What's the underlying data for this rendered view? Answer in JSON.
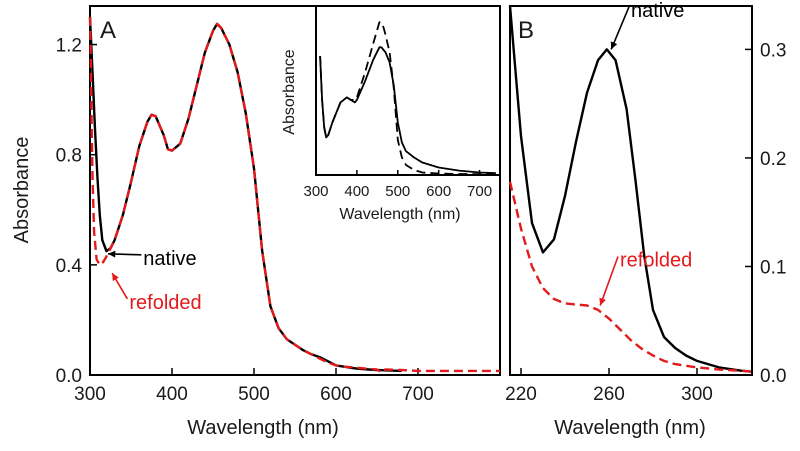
{
  "chart_data": [
    {
      "id": "A",
      "type": "line",
      "panel_label": "A",
      "xlabel": "Wavelength (nm)",
      "ylabel": "Absorbance",
      "xlim": [
        300,
        800
      ],
      "ylim": [
        0,
        1.34
      ],
      "x_ticks": [
        300,
        400,
        500,
        600,
        700
      ],
      "x_tick_labels": [
        "300",
        "400",
        "500",
        "600",
        "700"
      ],
      "y_ticks": [
        0.0,
        0.4,
        0.8,
        1.2
      ],
      "y_tick_labels": [
        "0.0",
        "0.4",
        "0.8",
        "1.2"
      ],
      "series": [
        {
          "name": "native",
          "color": "#000000",
          "dash": "solid",
          "points": [
            [
              300,
              1.3
            ],
            [
              303,
              1.1
            ],
            [
              306,
              0.9
            ],
            [
              309,
              0.72
            ],
            [
              312,
              0.58
            ],
            [
              315,
              0.49
            ],
            [
              320,
              0.45
            ],
            [
              325,
              0.46
            ],
            [
              330,
              0.49
            ],
            [
              340,
              0.58
            ],
            [
              350,
              0.7
            ],
            [
              360,
              0.83
            ],
            [
              370,
              0.92
            ],
            [
              375,
              0.945
            ],
            [
              380,
              0.94
            ],
            [
              390,
              0.87
            ],
            [
              395,
              0.82
            ],
            [
              400,
              0.815
            ],
            [
              410,
              0.84
            ],
            [
              420,
              0.93
            ],
            [
              430,
              1.05
            ],
            [
              440,
              1.17
            ],
            [
              450,
              1.25
            ],
            [
              455,
              1.275
            ],
            [
              460,
              1.26
            ],
            [
              470,
              1.2
            ],
            [
              480,
              1.1
            ],
            [
              490,
              0.95
            ],
            [
              500,
              0.75
            ],
            [
              510,
              0.45
            ],
            [
              520,
              0.25
            ],
            [
              530,
              0.17
            ],
            [
              540,
              0.13
            ],
            [
              550,
              0.11
            ],
            [
              560,
              0.09
            ],
            [
              570,
              0.075
            ],
            [
              580,
              0.065
            ],
            [
              590,
              0.05
            ],
            [
              600,
              0.035
            ],
            [
              610,
              0.03
            ],
            [
              620,
              0.025
            ],
            [
              630,
              0.022
            ],
            [
              640,
              0.02
            ],
            [
              650,
              0.018
            ],
            [
              660,
              0.017
            ],
            [
              680,
              0.015
            ]
          ]
        },
        {
          "name": "refolded",
          "color": "#e31a1c",
          "dash": "dashed",
          "points": [
            [
              300,
              1.3
            ],
            [
              301,
              1.15
            ],
            [
              302,
              0.92
            ],
            [
              303,
              0.72
            ],
            [
              305,
              0.52
            ],
            [
              308,
              0.42
            ],
            [
              312,
              0.4
            ],
            [
              316,
              0.41
            ],
            [
              320,
              0.43
            ],
            [
              325,
              0.46
            ],
            [
              330,
              0.49
            ],
            [
              340,
              0.58
            ],
            [
              350,
              0.7
            ],
            [
              360,
              0.83
            ],
            [
              370,
              0.92
            ],
            [
              375,
              0.945
            ],
            [
              380,
              0.94
            ],
            [
              390,
              0.87
            ],
            [
              395,
              0.82
            ],
            [
              400,
              0.815
            ],
            [
              410,
              0.84
            ],
            [
              420,
              0.93
            ],
            [
              430,
              1.05
            ],
            [
              440,
              1.17
            ],
            [
              450,
              1.25
            ],
            [
              455,
              1.275
            ],
            [
              460,
              1.26
            ],
            [
              470,
              1.2
            ],
            [
              480,
              1.1
            ],
            [
              490,
              0.95
            ],
            [
              500,
              0.75
            ],
            [
              510,
              0.45
            ],
            [
              520,
              0.25
            ],
            [
              530,
              0.17
            ],
            [
              540,
              0.13
            ],
            [
              550,
              0.11
            ],
            [
              560,
              0.09
            ],
            [
              570,
              0.075
            ],
            [
              580,
              0.06
            ],
            [
              590,
              0.045
            ],
            [
              600,
              0.035
            ],
            [
              610,
              0.03
            ],
            [
              620,
              0.028
            ],
            [
              630,
              0.025
            ],
            [
              640,
              0.022
            ],
            [
              650,
              0.02
            ],
            [
              655,
              0.01
            ],
            [
              660,
              0.02
            ],
            [
              680,
              0.018
            ],
            [
              700,
              0.015
            ],
            [
              720,
              0.015
            ],
            [
              740,
              0.015
            ],
            [
              760,
              0.015
            ],
            [
              780,
              0.015
            ],
            [
              800,
              0.015
            ]
          ]
        }
      ],
      "annotations": [
        {
          "text": "native",
          "color": "#000000",
          "arrow_to": [
            322,
            0.44
          ],
          "label_at": [
            365,
            0.4
          ]
        },
        {
          "text": "refolded",
          "color": "#e31a1c",
          "arrow_to": [
            327,
            0.37
          ],
          "label_at": [
            348,
            0.24
          ]
        }
      ]
    },
    {
      "id": "A-inset",
      "type": "line",
      "ylabel": "Absorbance",
      "xlabel": "Wavelength (nm)",
      "xlim": [
        300,
        750
      ],
      "ylim": [
        0,
        1.35
      ],
      "x_ticks": [
        300,
        400,
        500,
        600,
        700
      ],
      "x_tick_labels": [
        "300",
        "400",
        "500",
        "600",
        "700"
      ],
      "series": [
        {
          "name": "native",
          "color": "#000000",
          "dash": "solid",
          "points": [
            [
              310,
              0.95
            ],
            [
              315,
              0.6
            ],
            [
              320,
              0.38
            ],
            [
              325,
              0.3
            ],
            [
              330,
              0.32
            ],
            [
              340,
              0.42
            ],
            [
              360,
              0.58
            ],
            [
              375,
              0.62
            ],
            [
              385,
              0.6
            ],
            [
              395,
              0.58
            ],
            [
              400,
              0.6
            ],
            [
              420,
              0.75
            ],
            [
              440,
              0.92
            ],
            [
              455,
              1.02
            ],
            [
              460,
              1.02
            ],
            [
              470,
              0.98
            ],
            [
              480,
              0.9
            ],
            [
              490,
              0.72
            ],
            [
              500,
              0.42
            ],
            [
              510,
              0.26
            ],
            [
              520,
              0.19
            ],
            [
              540,
              0.14
            ],
            [
              560,
              0.1
            ],
            [
              600,
              0.06
            ],
            [
              650,
              0.035
            ],
            [
              700,
              0.02
            ],
            [
              740,
              0.015
            ]
          ]
        },
        {
          "name": "refolded",
          "color": "#000000",
          "dash": "dashed",
          "points": [
            [
              310,
              0.95
            ],
            [
              315,
              0.6
            ],
            [
              320,
              0.38
            ],
            [
              325,
              0.3
            ],
            [
              330,
              0.32
            ],
            [
              340,
              0.42
            ],
            [
              360,
              0.58
            ],
            [
              375,
              0.62
            ],
            [
              385,
              0.6
            ],
            [
              395,
              0.6
            ],
            [
              400,
              0.62
            ],
            [
              420,
              0.82
            ],
            [
              440,
              1.05
            ],
            [
              455,
              1.22
            ],
            [
              460,
              1.22
            ],
            [
              465,
              1.18
            ],
            [
              470,
              1.12
            ],
            [
              480,
              0.98
            ],
            [
              490,
              0.7
            ],
            [
              500,
              0.28
            ],
            [
              510,
              0.14
            ],
            [
              520,
              0.08
            ],
            [
              540,
              0.04
            ],
            [
              560,
              0.02
            ],
            [
              600,
              0.012
            ],
            [
              650,
              0.008
            ],
            [
              700,
              0.006
            ],
            [
              740,
              0.005
            ]
          ]
        }
      ]
    },
    {
      "id": "B",
      "type": "line",
      "panel_label": "B",
      "xlabel": "Wavelength (nm)",
      "xlim": [
        215,
        325
      ],
      "ylim": [
        0,
        0.34
      ],
      "x_ticks": [
        220,
        260,
        300
      ],
      "x_tick_labels": [
        "220",
        "260",
        "300"
      ],
      "y_ticks": [
        0.0,
        0.1,
        0.2,
        0.3
      ],
      "y_tick_labels": [
        "0.0",
        "0.1",
        "0.2",
        "0.3"
      ],
      "series": [
        {
          "name": "native",
          "color": "#000000",
          "dash": "solid",
          "points": [
            [
              215,
              0.34
            ],
            [
              220,
              0.22
            ],
            [
              225,
              0.14
            ],
            [
              230,
              0.113
            ],
            [
              235,
              0.125
            ],
            [
              240,
              0.165
            ],
            [
              245,
              0.215
            ],
            [
              250,
              0.26
            ],
            [
              255,
              0.29
            ],
            [
              259,
              0.3
            ],
            [
              263,
              0.29
            ],
            [
              268,
              0.245
            ],
            [
              272,
              0.18
            ],
            [
              276,
              0.11
            ],
            [
              280,
              0.06
            ],
            [
              285,
              0.035
            ],
            [
              290,
              0.025
            ],
            [
              295,
              0.018
            ],
            [
              300,
              0.013
            ],
            [
              310,
              0.007
            ],
            [
              320,
              0.004
            ],
            [
              325,
              0.003
            ]
          ]
        },
        {
          "name": "refolded",
          "color": "#e31a1c",
          "dash": "dashed",
          "points": [
            [
              215,
              0.178
            ],
            [
              220,
              0.135
            ],
            [
              225,
              0.1
            ],
            [
              230,
              0.08
            ],
            [
              235,
              0.07
            ],
            [
              240,
              0.066
            ],
            [
              245,
              0.065
            ],
            [
              250,
              0.064
            ],
            [
              255,
              0.06
            ],
            [
              260,
              0.052
            ],
            [
              265,
              0.042
            ],
            [
              270,
              0.032
            ],
            [
              275,
              0.024
            ],
            [
              280,
              0.018
            ],
            [
              285,
              0.013
            ],
            [
              290,
              0.01
            ],
            [
              300,
              0.007
            ],
            [
              310,
              0.005
            ],
            [
              320,
              0.004
            ],
            [
              325,
              0.003
            ]
          ]
        }
      ],
      "annotations": [
        {
          "text": "native",
          "color": "#000000",
          "arrow_to": [
            261,
            0.3
          ],
          "label_at": [
            270,
            0.33
          ]
        },
        {
          "text": "refolded",
          "color": "#e31a1c",
          "arrow_to": [
            256,
            0.064
          ],
          "label_at": [
            265,
            0.1
          ]
        }
      ]
    }
  ],
  "colors": {
    "native": "#000000",
    "refolded": "#e31a1c"
  }
}
